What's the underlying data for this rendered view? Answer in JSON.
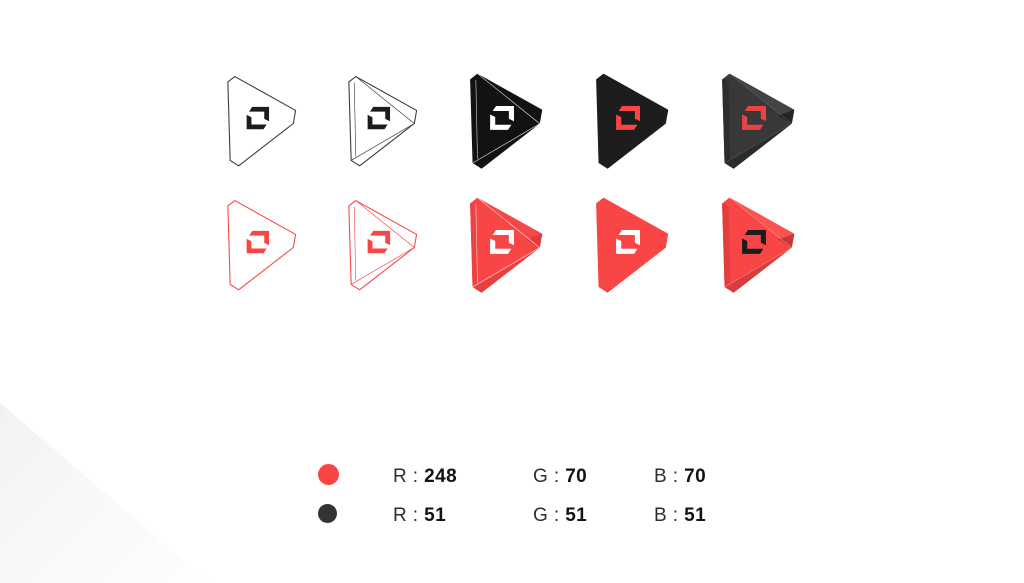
{
  "colors": {
    "brand_red": "#F84646",
    "brand_dark": "#333333",
    "background": "#FFFFFF"
  },
  "logo_showcase": {
    "icon_name": "swap-play-logo",
    "rows": [
      {
        "name": "dark-variants",
        "variants": [
          {
            "id": "dark-outline",
            "style": "outline",
            "body": "#ffffff",
            "stroke": "#3a3a3a",
            "icon_color": "#1c1c1c",
            "facet_lines": false
          },
          {
            "id": "dark-outline-faceted",
            "style": "outline",
            "body": "#ffffff",
            "stroke": "#3a3a3a",
            "icon_color": "#1c1c1c",
            "facet_lines": true,
            "line_color": "#3a3a3a",
            "left_line": true
          },
          {
            "id": "dark-solid-faceted",
            "style": "solid",
            "body": "#121212",
            "icon_color": "#ffffff",
            "facet_lines": true,
            "line_color": "rgba(255,255,255,0.75)",
            "left_line": true
          },
          {
            "id": "dark-solid-flat",
            "style": "solid",
            "body": "#1d1d1d",
            "icon_color": "#f84646",
            "facet_lines": false
          },
          {
            "id": "charcoal-solid-shaded",
            "style": "solid",
            "body": "#383838",
            "icon_color": "#e94343",
            "facet_lines": true,
            "line_color": "rgba(255,255,255,0.15)",
            "facets": {
              "top": "#444444",
              "bottom": "#2b2b2b",
              "tip": "#252525",
              "left": "#2d2d2d"
            }
          }
        ]
      },
      {
        "name": "red-variants",
        "variants": [
          {
            "id": "red-outline",
            "style": "outline",
            "body": "#ffffff",
            "stroke": "#f84646",
            "icon_color": "#f84646",
            "facet_lines": false
          },
          {
            "id": "red-outline-faceted",
            "style": "outline",
            "body": "#ffffff",
            "stroke": "#f84646",
            "icon_color": "#f84646",
            "facet_lines": true,
            "line_color": "#f84646",
            "left_line": true
          },
          {
            "id": "red-solid-faceted",
            "style": "solid",
            "body": "#f84646",
            "icon_color": "#ffffff",
            "facet_lines": true,
            "line_color": "rgba(255,255,255,0.7)",
            "left_line": true,
            "facets": {
              "bottom": "#e64040",
              "tip": "#de3c3c",
              "left": "#ee4242"
            }
          },
          {
            "id": "red-solid-flat",
            "style": "solid",
            "body": "#f84646",
            "icon_color": "#ffffff",
            "facet_lines": false
          },
          {
            "id": "red-solid-shaded",
            "style": "solid",
            "body": "#f84646",
            "icon_color": "#1c1c1c",
            "facet_lines": true,
            "line_color": "rgba(255,255,255,0.3)",
            "facets": {
              "top": "#fa5350",
              "bottom": "#d83d3d",
              "tip": "#c93838",
              "left": "#e23e3e"
            }
          }
        ]
      }
    ]
  },
  "palette": {
    "separator": " : ",
    "rows": [
      {
        "swatch": "#F84646",
        "values": [
          {
            "channel": "R",
            "value": "248"
          },
          {
            "channel": "G",
            "value": "70"
          },
          {
            "channel": "B",
            "value": "70"
          }
        ]
      },
      {
        "swatch": "#333333",
        "values": [
          {
            "channel": "R",
            "value": "51"
          },
          {
            "channel": "G",
            "value": "51"
          },
          {
            "channel": "B",
            "value": "51"
          }
        ]
      }
    ]
  }
}
